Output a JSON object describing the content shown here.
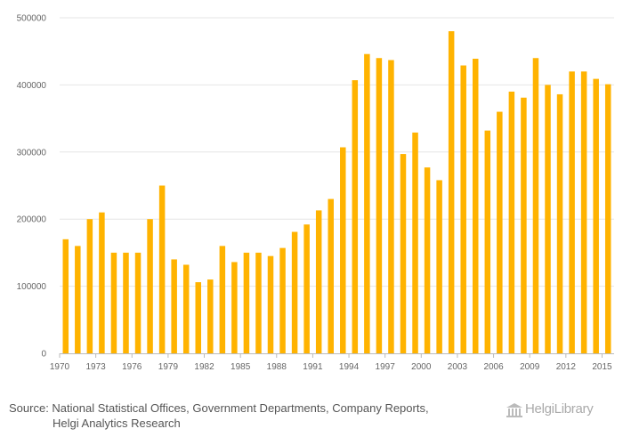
{
  "chart_data": {
    "type": "bar",
    "title": "",
    "xlabel": "",
    "ylabel": "",
    "ylim": [
      0,
      500000
    ],
    "yticks": [
      0,
      100000,
      200000,
      300000,
      400000,
      500000
    ],
    "ytick_labels": [
      "0",
      "100000",
      "200000",
      "300000",
      "400000",
      "500000"
    ],
    "xtick_labels": [
      "1970",
      "1973",
      "1976",
      "1979",
      "1982",
      "1985",
      "1988",
      "1991",
      "1994",
      "1997",
      "2000",
      "2003",
      "2006",
      "2009",
      "2012",
      "2015"
    ],
    "bar_color": "#FFB300",
    "grid": true,
    "categories": [
      1970,
      1971,
      1972,
      1973,
      1974,
      1975,
      1976,
      1977,
      1978,
      1979,
      1980,
      1981,
      1982,
      1983,
      1984,
      1985,
      1986,
      1987,
      1988,
      1989,
      1990,
      1991,
      1992,
      1993,
      1994,
      1995,
      1996,
      1997,
      1998,
      1999,
      2000,
      2001,
      2002,
      2003,
      2004,
      2005,
      2006,
      2007,
      2008,
      2009,
      2010,
      2011,
      2012,
      2013,
      2014,
      2015
    ],
    "values": [
      170000,
      160000,
      200000,
      210000,
      150000,
      150000,
      150000,
      200000,
      250000,
      140000,
      132000,
      106000,
      110000,
      160000,
      136000,
      150000,
      150000,
      145000,
      157000,
      181000,
      192000,
      213000,
      230000,
      307000,
      407000,
      446000,
      440000,
      437000,
      297000,
      329000,
      277000,
      258000,
      480000,
      429000,
      439000,
      332000,
      360000,
      390000,
      381000,
      440000,
      400000,
      386000,
      420000,
      420000,
      409000,
      401000
    ]
  },
  "footer": {
    "source_line1": "Source: National Statistical Offices, Government Departments, Company Reports,",
    "source_line2": "Helgi Analytics Research"
  },
  "logo": {
    "text": "HelgiLibrary",
    "color": "#aaaaaa"
  }
}
